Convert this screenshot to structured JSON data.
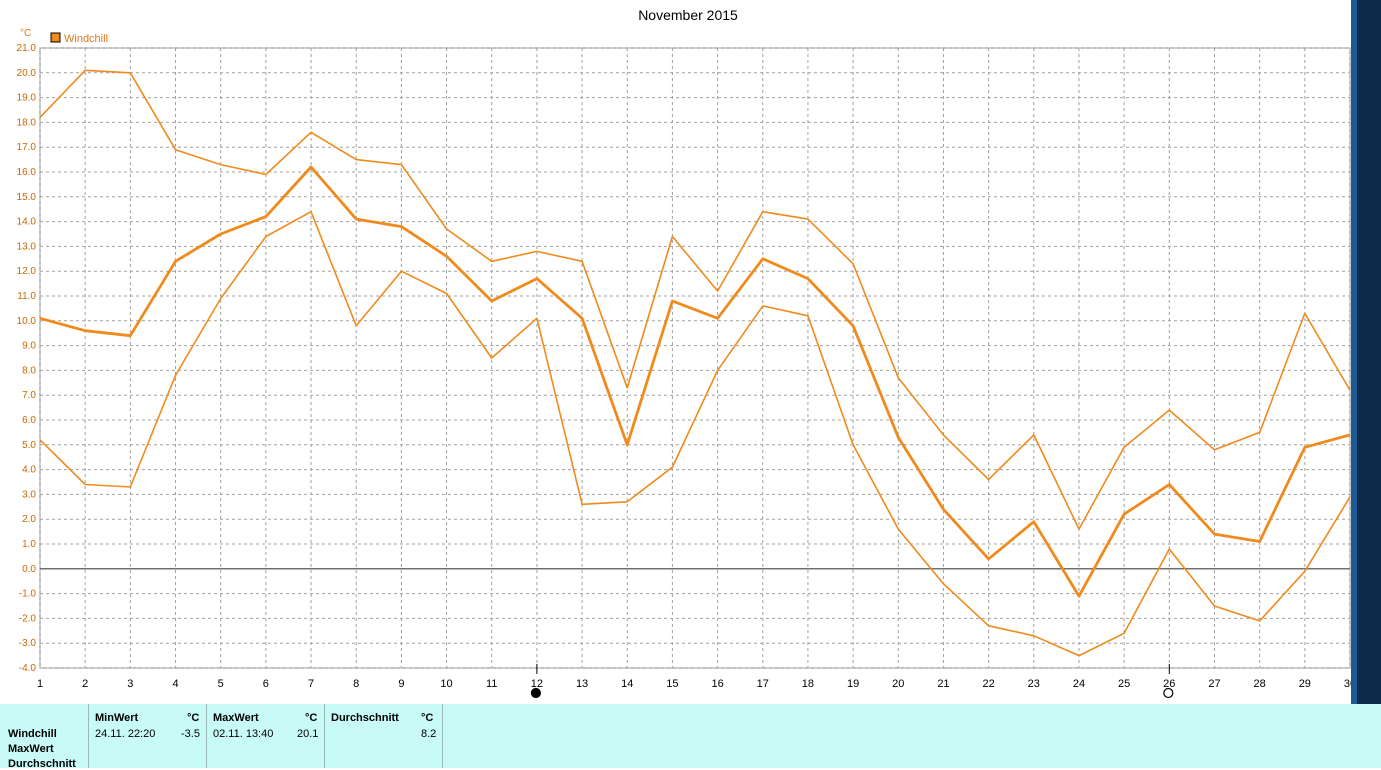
{
  "chart_data": {
    "type": "line",
    "title": "November 2015",
    "ylabel": "°C",
    "ylim": [
      -4,
      21
    ],
    "yticks": [
      "21.0",
      "20.0",
      "19.0",
      "18.0",
      "17.0",
      "16.0",
      "15.0",
      "14.0",
      "13.0",
      "12.0",
      "11.0",
      "10.0",
      "9.0",
      "8.0",
      "7.0",
      "6.0",
      "5.0",
      "4.0",
      "3.0",
      "2.0",
      "1.0",
      "0.0",
      "-1.0",
      "-2.0",
      "-3.0",
      "-4.0"
    ],
    "x": [
      1,
      2,
      3,
      4,
      5,
      6,
      7,
      8,
      9,
      10,
      11,
      12,
      13,
      14,
      15,
      16,
      17,
      18,
      19,
      20,
      21,
      22,
      23,
      24,
      25,
      26,
      27,
      28,
      29,
      30
    ],
    "xticks": [
      "1",
      "2",
      "3",
      "4",
      "5",
      "6",
      "7",
      "8",
      "9",
      "10",
      "11",
      "12",
      "13",
      "14",
      "15",
      "16",
      "17",
      "18",
      "19",
      "20",
      "21",
      "22",
      "23",
      "24",
      "25",
      "26",
      "27",
      "28",
      "29",
      "30"
    ],
    "legend": "Windchill",
    "grid": true,
    "color": "#f08a1c",
    "series": [
      {
        "values": [
          18.2,
          20.1,
          20.0,
          16.9,
          16.3,
          15.9,
          17.6,
          16.5,
          16.3,
          13.7,
          12.4,
          12.8,
          12.4,
          7.3,
          13.4,
          11.2,
          14.4,
          14.1,
          12.3,
          7.7,
          5.4,
          3.6,
          5.4,
          1.6,
          4.9,
          6.4,
          4.8,
          5.5,
          10.3,
          7.2
        ]
      },
      {
        "values": [
          10.1,
          9.6,
          9.4,
          12.4,
          13.5,
          14.2,
          16.2,
          14.1,
          13.8,
          12.6,
          10.8,
          11.7,
          10.1,
          5.0,
          10.8,
          10.1,
          12.5,
          11.7,
          9.8,
          5.3,
          2.4,
          0.4,
          1.9,
          -1.1,
          2.2,
          3.4,
          1.4,
          1.1,
          4.9,
          5.4
        ]
      },
      {
        "values": [
          5.2,
          3.4,
          3.3,
          7.8,
          10.9,
          13.4,
          14.4,
          9.8,
          12.0,
          11.1,
          8.5,
          10.1,
          2.6,
          2.7,
          4.1,
          8.0,
          10.6,
          10.2,
          5.0,
          1.6,
          -0.6,
          -2.3,
          -2.7,
          -3.5,
          -2.6,
          0.8,
          -1.5,
          -2.1,
          -0.1,
          2.9
        ]
      }
    ],
    "moon_markers": [
      {
        "x": 12,
        "symbol": "●"
      },
      {
        "x": 26,
        "symbol": "○"
      }
    ]
  },
  "summary": {
    "rows": [
      "Windchill",
      "MaxWert",
      "Durchschnitt"
    ],
    "min": {
      "header": "MinWert",
      "unit": "°C",
      "date": "24.11.  22:20",
      "value": "-3.5"
    },
    "max": {
      "header": "MaxWert",
      "unit": "°C",
      "date": "02.11.  13:40",
      "value": "20.1"
    },
    "avg": {
      "header": "Durchschnitt",
      "unit": "°C",
      "value": "8.2"
    }
  }
}
